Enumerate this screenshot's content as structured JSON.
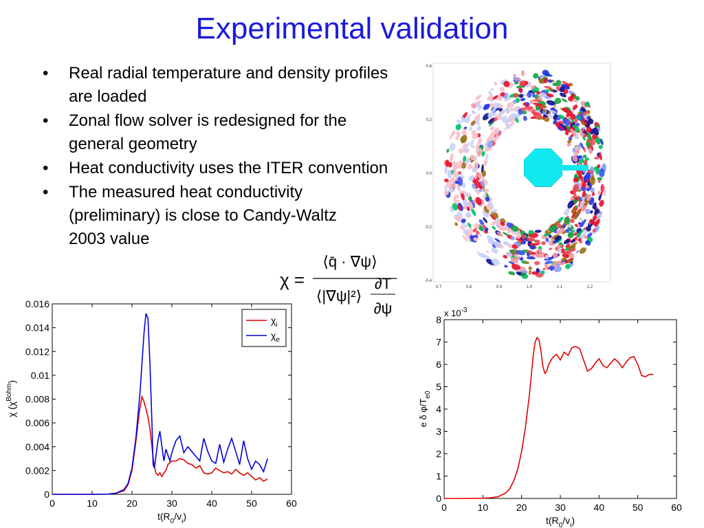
{
  "slide": {
    "title": "Experimental validation",
    "bullets": [
      {
        "text": "Real radial temperature and density profiles are loaded"
      },
      {
        "text": "Zonal flow solver is redesigned for the general geometry"
      },
      {
        "text": "Heat conductivity uses the ITER convention"
      },
      {
        "text": "The measured heat conductivity (preliminary) is close to Candy-Waltz 2003 value"
      }
    ],
    "bullet_symbol": "•"
  },
  "formula": {
    "lhs": "χ =",
    "numerator": "⟨q̄ · ∇ψ⟩",
    "den_left": "⟨|∇ψ|²⟩",
    "den_frac_top": "∂T",
    "den_frac_bottom": "∂ψ"
  },
  "chart_data": [
    {
      "type": "line",
      "xlabel": "t(R0/vi)",
      "ylabel": "χ (χBohm)",
      "xlim": [
        0,
        60
      ],
      "ylim": [
        0,
        0.016
      ],
      "xticks": [
        "0",
        "10",
        "20",
        "30",
        "40",
        "50",
        "60"
      ],
      "yticks": [
        "0",
        "0.002",
        "0.004",
        "0.006",
        "0.008",
        "0.01",
        "0.012",
        "0.014",
        "0.016"
      ],
      "legend_position": "top-right",
      "series": [
        {
          "name": "χi",
          "color": "#e00000",
          "x": [
            0,
            5,
            10,
            14,
            16,
            18,
            19,
            20,
            21,
            21.8,
            22.5,
            23,
            23.5,
            24,
            24.5,
            25,
            25.5,
            26,
            26.5,
            27,
            27.5,
            28,
            28.5,
            29,
            30,
            31,
            32,
            33,
            34,
            35,
            36,
            37,
            38,
            39,
            40,
            41,
            42,
            43,
            44,
            45,
            46,
            47,
            48,
            49,
            50,
            51,
            52,
            53,
            54
          ],
          "y": [
            0,
            0,
            0,
            2e-05,
            8e-05,
            0.0003,
            0.0008,
            0.002,
            0.0045,
            0.0068,
            0.0082,
            0.0078,
            0.0072,
            0.0065,
            0.0055,
            0.004,
            0.0025,
            0.0018,
            0.0016,
            0.0018,
            0.0015,
            0.0018,
            0.002,
            0.0025,
            0.0028,
            0.0028,
            0.003,
            0.0029,
            0.0026,
            0.0025,
            0.0022,
            0.0024,
            0.0018,
            0.0017,
            0.0018,
            0.0022,
            0.002,
            0.0018,
            0.0019,
            0.0017,
            0.0021,
            0.0018,
            0.0016,
            0.0018,
            0.0015,
            0.0012,
            0.0014,
            0.0011,
            0.0013
          ]
        },
        {
          "name": "χe",
          "color": "#0000dd",
          "x": [
            0,
            5,
            10,
            14,
            16,
            18,
            19,
            20,
            21,
            22,
            23,
            23.5,
            24,
            24.5,
            25,
            25.3,
            25.6,
            26,
            26.5,
            27,
            27.5,
            28,
            28.5,
            29,
            29.5,
            30,
            31,
            32,
            33,
            34,
            35,
            36,
            37,
            38,
            39,
            40,
            41,
            42,
            43,
            44,
            45,
            46,
            47,
            48,
            49,
            50,
            51,
            52,
            53,
            54
          ],
          "y": [
            0,
            0,
            0,
            2e-05,
            0.0001,
            0.0004,
            0.0009,
            0.0022,
            0.0048,
            0.0085,
            0.0135,
            0.0152,
            0.0148,
            0.011,
            0.006,
            0.0025,
            0.0022,
            0.0032,
            0.0045,
            0.0053,
            0.004,
            0.0028,
            0.0038,
            0.0033,
            0.0028,
            0.0035,
            0.0045,
            0.0049,
            0.0035,
            0.004,
            0.0036,
            0.0032,
            0.0028,
            0.0047,
            0.0036,
            0.0028,
            0.0026,
            0.0042,
            0.0027,
            0.0038,
            0.0047,
            0.0036,
            0.0025,
            0.0045,
            0.003,
            0.0021,
            0.0028,
            0.0025,
            0.0019,
            0.003
          ]
        }
      ]
    },
    {
      "type": "line",
      "xlabel": "t(R0/vi)",
      "ylabel": "e δ φ/Te0",
      "exponent_label": "x 10-3",
      "xlim": [
        0,
        60
      ],
      "ylim": [
        0,
        8
      ],
      "xticks": [
        "0",
        "10",
        "20",
        "30",
        "40",
        "50",
        "60"
      ],
      "yticks": [
        "0",
        "1",
        "2",
        "3",
        "4",
        "5",
        "6",
        "7",
        "8"
      ],
      "series": [
        {
          "color": "#e00000",
          "x": [
            0,
            5,
            10,
            12,
            14,
            16,
            17,
            18,
            19,
            20,
            21,
            22,
            22.5,
            23,
            23.5,
            24,
            24.5,
            25,
            25.5,
            26,
            26.5,
            27,
            28,
            29,
            30,
            31,
            32,
            33,
            34,
            35,
            36,
            37,
            38,
            39,
            40,
            41,
            42,
            43,
            44,
            45,
            46,
            47,
            48,
            49,
            50,
            51,
            52,
            53,
            54
          ],
          "y": [
            0,
            0,
            0.01,
            0.03,
            0.08,
            0.25,
            0.45,
            0.8,
            1.3,
            2.1,
            3.2,
            4.6,
            5.5,
            6.4,
            7.0,
            7.2,
            7.1,
            6.6,
            5.9,
            5.6,
            5.7,
            6.0,
            6.3,
            6.45,
            6.2,
            6.55,
            6.4,
            6.75,
            6.8,
            6.7,
            6.2,
            5.7,
            5.8,
            6.05,
            6.25,
            5.95,
            5.85,
            6.05,
            6.25,
            6.1,
            5.85,
            6.1,
            6.3,
            6.35,
            6.0,
            5.5,
            5.45,
            5.55,
            5.55
          ]
        }
      ]
    },
    {
      "type": "scatter",
      "subtype": "poloidal cross-section contour",
      "xticks": [
        "0.7",
        "0.8",
        "0.9",
        "1.0",
        "1.1",
        "1.2"
      ],
      "yticks": [
        "0.4",
        "0.2",
        "0.0",
        "−0.2",
        "−0.4"
      ]
    }
  ],
  "colors": {
    "title": "#1a1adc",
    "text": "#000000"
  }
}
